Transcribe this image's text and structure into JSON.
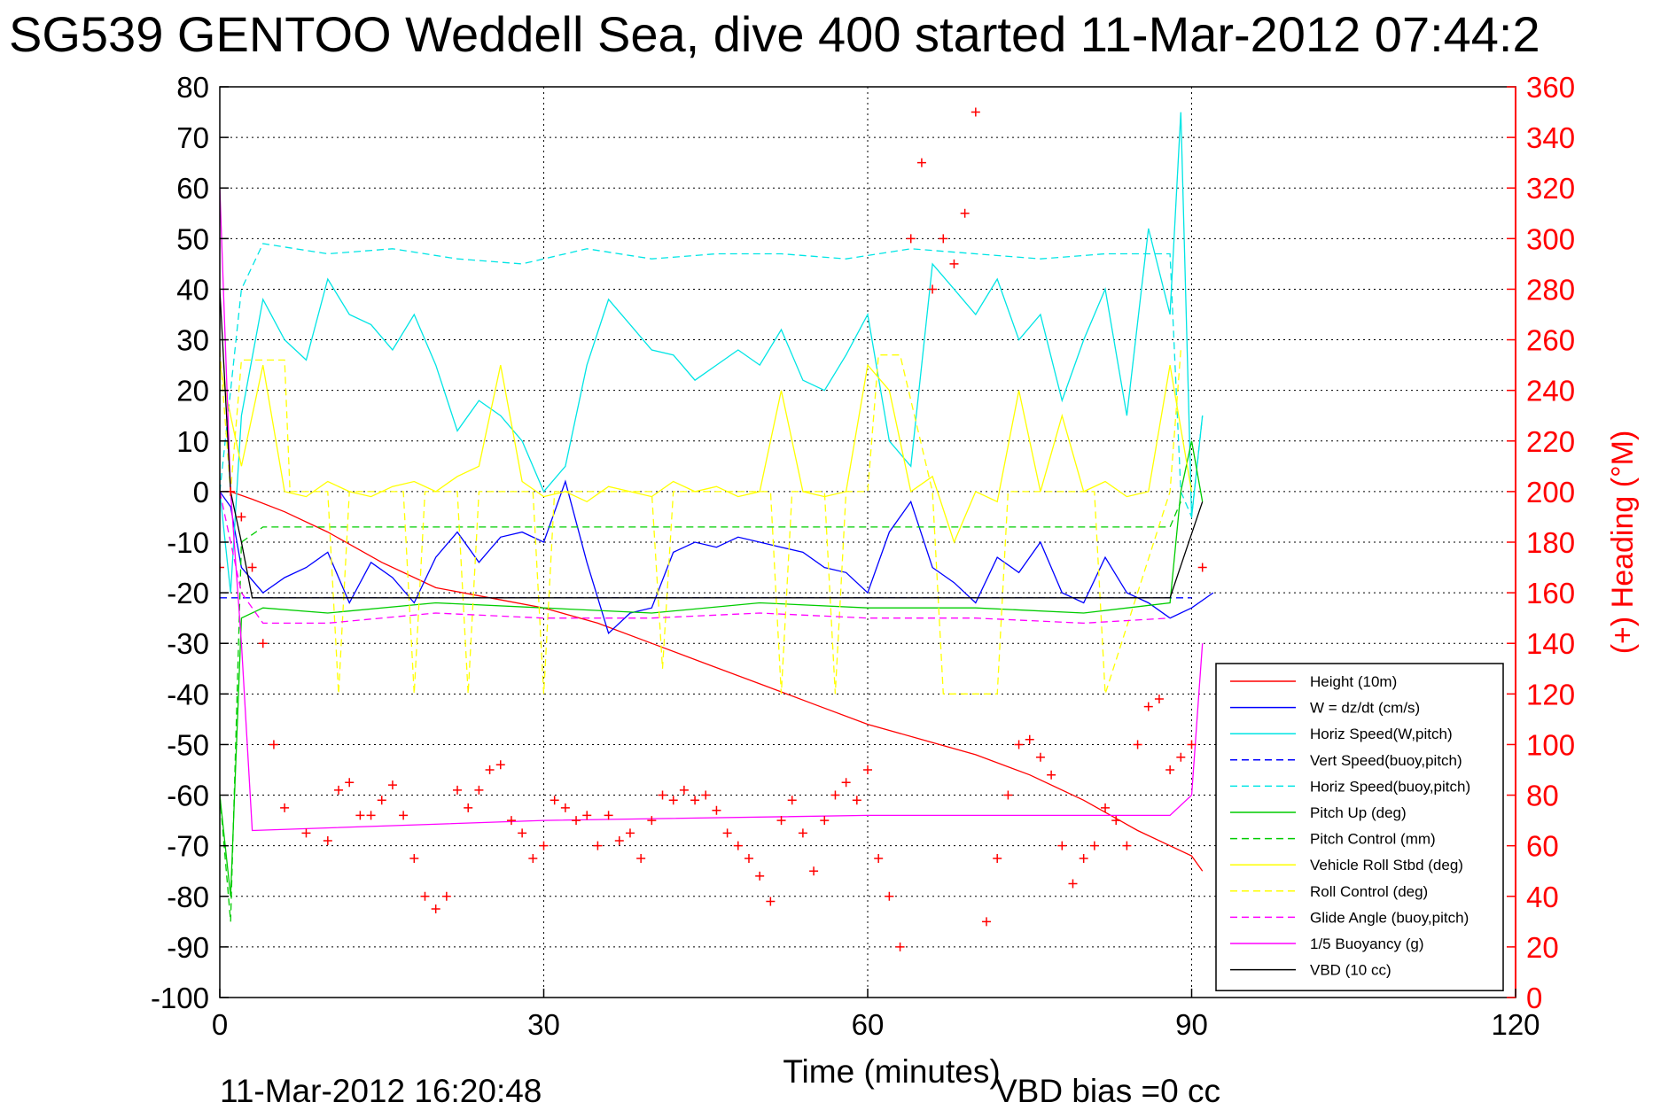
{
  "chart_data": {
    "type": "line",
    "title": "SG539 GENTOO Weddell Sea, dive 400 started 11-Mar-2012 07:44:2",
    "xlabel": "Time (minutes)",
    "ylabel_right": "(+) Heading (°M)",
    "xlim": [
      0,
      120
    ],
    "ylim_left": [
      -100,
      80
    ],
    "ylim_right": [
      0,
      360
    ],
    "x_ticks": [
      "0",
      "30",
      "60",
      "90",
      "120"
    ],
    "y_ticks_left": [
      "80",
      "70",
      "60",
      "50",
      "40",
      "30",
      "20",
      "10",
      "0",
      "-10",
      "-20",
      "-30",
      "-40",
      "-50",
      "-60",
      "-70",
      "-80",
      "-90",
      "-100"
    ],
    "y_ticks_right": [
      "360",
      "340",
      "320",
      "300",
      "280",
      "260",
      "240",
      "220",
      "200",
      "180",
      "160",
      "140",
      "120",
      "100",
      "80",
      "60",
      "40",
      "20",
      "0"
    ],
    "grid": true,
    "legend_position": "lower-right",
    "footer_date": "11-Mar-2012 16:20:48",
    "footer_vbd": "VBD bias =0 cc",
    "series": [
      {
        "name": "Height (10m)",
        "color": "#ff0000",
        "style": "solid",
        "axis": "left",
        "x": [
          0,
          1,
          3,
          6,
          10,
          15,
          20,
          25,
          30,
          35,
          40,
          45,
          50,
          55,
          60,
          65,
          70,
          75,
          80,
          85,
          88,
          90,
          91
        ],
        "y": [
          0,
          0,
          -1.5,
          -4,
          -8,
          -14,
          -19,
          -21,
          -23,
          -26,
          -30,
          -34,
          -38,
          -42,
          -46,
          -49,
          -52,
          -56,
          -61,
          -67,
          -70,
          -72,
          -75
        ]
      },
      {
        "name": "W = dz/dt (cm/s)",
        "color": "#0000ff",
        "style": "solid",
        "axis": "left",
        "x": [
          0,
          1,
          2,
          4,
          6,
          8,
          10,
          12,
          14,
          16,
          18,
          20,
          22,
          24,
          26,
          28,
          30,
          32,
          34,
          36,
          38,
          40,
          42,
          44,
          46,
          48,
          50,
          52,
          54,
          56,
          58,
          60,
          62,
          64,
          66,
          68,
          70,
          72,
          74,
          76,
          78,
          80,
          82,
          84,
          86,
          88,
          90,
          92
        ],
        "y": [
          0,
          -3,
          -15,
          -20,
          -17,
          -15,
          -12,
          -22,
          -14,
          -17,
          -22,
          -13,
          -8,
          -14,
          -9,
          -8,
          -10,
          2,
          -14,
          -28,
          -24,
          -23,
          -12,
          -10,
          -11,
          -9,
          -10,
          -11,
          -12,
          -15,
          -16,
          -20,
          -8,
          -2,
          -15,
          -18,
          -22,
          -13,
          -16,
          -10,
          -20,
          -22,
          -13,
          -20,
          -22,
          -25,
          -23,
          -20
        ]
      },
      {
        "name": "Horiz Speed(W,pitch)",
        "color": "#00e5e5",
        "style": "solid",
        "axis": "left",
        "x": [
          0,
          1,
          2,
          4,
          6,
          8,
          10,
          12,
          14,
          16,
          18,
          20,
          22,
          24,
          26,
          28,
          30,
          32,
          34,
          36,
          38,
          40,
          42,
          44,
          46,
          48,
          50,
          52,
          54,
          56,
          58,
          60,
          62,
          64,
          66,
          68,
          70,
          72,
          74,
          76,
          78,
          80,
          82,
          84,
          86,
          88,
          89,
          90,
          91
        ],
        "y": [
          0,
          -20,
          15,
          38,
          30,
          26,
          42,
          35,
          33,
          28,
          35,
          25,
          12,
          18,
          15,
          10,
          0,
          5,
          25,
          38,
          33,
          28,
          27,
          22,
          25,
          28,
          25,
          32,
          22,
          20,
          27,
          35,
          10,
          5,
          45,
          40,
          35,
          42,
          30,
          35,
          18,
          30,
          40,
          15,
          52,
          35,
          75,
          -5,
          15
        ]
      },
      {
        "name": "Vert Speed(buoy,pitch)",
        "color": "#0000ff",
        "style": "dashed",
        "axis": "left",
        "x": [
          0,
          3,
          90
        ],
        "y": [
          -21,
          -21,
          -21
        ]
      },
      {
        "name": "Horiz Speed(buoy,pitch)",
        "color": "#00e5e5",
        "style": "dashed",
        "axis": "left",
        "x": [
          0,
          2,
          4,
          10,
          16,
          22,
          28,
          34,
          40,
          46,
          52,
          58,
          64,
          70,
          76,
          82,
          88,
          89,
          90,
          91
        ],
        "y": [
          0,
          40,
          49,
          47,
          48,
          46,
          45,
          48,
          46,
          47,
          47,
          46,
          48,
          47,
          46,
          47,
          47,
          0,
          -5,
          15
        ]
      },
      {
        "name": "Pitch Up (deg)",
        "color": "#00cc00",
        "style": "solid",
        "axis": "left",
        "x": [
          0,
          1,
          2,
          4,
          10,
          20,
          30,
          40,
          50,
          60,
          70,
          80,
          88,
          89,
          90,
          91
        ],
        "y": [
          -60,
          -80,
          -25,
          -23,
          -24,
          -22,
          -23,
          -24,
          -22,
          -23,
          -23,
          -24,
          -22,
          0,
          10,
          -2
        ]
      },
      {
        "name": "Pitch Control (mm)",
        "color": "#00cc00",
        "style": "dashed",
        "axis": "left",
        "x": [
          0,
          1,
          2,
          4,
          88,
          89
        ],
        "y": [
          -60,
          -85,
          -10,
          -7,
          -7,
          -2
        ]
      },
      {
        "name": "Vehicle Roll Stbd (deg)",
        "color": "#ffff00",
        "style": "solid",
        "axis": "left",
        "x": [
          0,
          2,
          4,
          6,
          8,
          10,
          12,
          14,
          16,
          18,
          20,
          22,
          24,
          26,
          28,
          30,
          32,
          34,
          36,
          38,
          40,
          42,
          44,
          46,
          48,
          50,
          52,
          54,
          56,
          58,
          60,
          62,
          64,
          66,
          68,
          70,
          72,
          74,
          76,
          78,
          80,
          82,
          84,
          86,
          88,
          90
        ],
        "y": [
          25,
          5,
          25,
          0,
          -1,
          2,
          0,
          -1,
          1,
          2,
          0,
          3,
          5,
          25,
          2,
          -1,
          0,
          -2,
          1,
          0,
          -1,
          2,
          0,
          1,
          -1,
          0,
          20,
          0,
          -1,
          0,
          25,
          20,
          0,
          3,
          -10,
          0,
          -2,
          20,
          0,
          15,
          0,
          2,
          -1,
          0,
          25,
          0
        ]
      },
      {
        "name": "Roll Control (deg)",
        "color": "#ffff00",
        "style": "dashed",
        "axis": "left",
        "x": [
          0,
          1,
          2,
          6,
          6.5,
          10,
          11,
          12,
          17,
          18,
          19,
          22,
          23,
          24,
          29,
          30,
          31,
          40,
          41,
          42,
          51,
          52,
          53,
          56,
          57,
          58,
          60,
          61,
          63,
          66,
          67,
          68,
          70,
          72,
          73,
          81,
          82,
          88,
          89
        ],
        "y": [
          28,
          0,
          26,
          26,
          0,
          0,
          -40,
          0,
          0,
          -40,
          0,
          0,
          -40,
          0,
          0,
          -40,
          0,
          0,
          -35,
          0,
          0,
          -40,
          0,
          0,
          -40,
          0,
          0,
          27,
          27,
          0,
          -40,
          -40,
          -40,
          -40,
          0,
          0,
          -40,
          0,
          28
        ]
      },
      {
        "name": "Glide Angle (buoy,pitch)",
        "color": "#ff00ff",
        "style": "dashed",
        "axis": "left",
        "x": [
          0,
          2,
          4,
          10,
          20,
          30,
          40,
          50,
          60,
          70,
          80,
          88
        ],
        "y": [
          0,
          -20,
          -26,
          -26,
          -24,
          -25,
          -25,
          -24,
          -25,
          -25,
          -26,
          -25
        ]
      },
      {
        "name": "1/5 Buoyancy (g)",
        "color": "#ff00ff",
        "style": "solid",
        "axis": "left",
        "x": [
          0,
          1,
          2,
          3,
          30,
          60,
          88,
          90,
          91
        ],
        "y": [
          60,
          0,
          -30,
          -67,
          -65,
          -64,
          -64,
          -60,
          -30
        ]
      },
      {
        "name": "VBD (10 cc)",
        "color": "#000000",
        "style": "solid",
        "axis": "left",
        "x": [
          0,
          1,
          2,
          3,
          88,
          91
        ],
        "y": [
          40,
          0,
          -10,
          -21,
          -21,
          -2
        ]
      },
      {
        "name": "(+) Heading (°M)",
        "color": "#ff0000",
        "style": "markers",
        "axis": "right",
        "x": [
          0,
          1,
          2,
          3,
          4,
          5,
          6,
          8,
          10,
          11,
          12,
          13,
          14,
          15,
          16,
          17,
          18,
          19,
          20,
          21,
          22,
          23,
          24,
          25,
          26,
          27,
          28,
          29,
          30,
          31,
          32,
          33,
          34,
          35,
          36,
          37,
          38,
          39,
          40,
          41,
          42,
          43,
          44,
          45,
          46,
          47,
          48,
          49,
          50,
          51,
          52,
          53,
          54,
          55,
          56,
          57,
          58,
          59,
          60,
          61,
          62,
          63,
          64,
          65,
          66,
          67,
          68,
          69,
          70,
          71,
          72,
          73,
          74,
          75,
          76,
          77,
          78,
          79,
          80,
          81,
          82,
          83,
          84,
          85,
          86,
          87,
          88,
          89,
          90,
          91
        ],
        "y": [
          170,
          200,
          190,
          170,
          140,
          100,
          75,
          65,
          62,
          82,
          85,
          72,
          72,
          78,
          84,
          72,
          55,
          40,
          35,
          40,
          82,
          75,
          82,
          90,
          92,
          70,
          65,
          55,
          60,
          78,
          75,
          70,
          72,
          60,
          72,
          62,
          65,
          55,
          70,
          80,
          78,
          82,
          78,
          80,
          74,
          65,
          60,
          55,
          48,
          38,
          70,
          78,
          65,
          50,
          70,
          80,
          85,
          78,
          90,
          55,
          40,
          20,
          300,
          330,
          280,
          300,
          290,
          310,
          350,
          30,
          55,
          80,
          100,
          102,
          95,
          88,
          60,
          45,
          55,
          60,
          75,
          70,
          60,
          100,
          115,
          118,
          90,
          95,
          100,
          170
        ]
      }
    ]
  }
}
